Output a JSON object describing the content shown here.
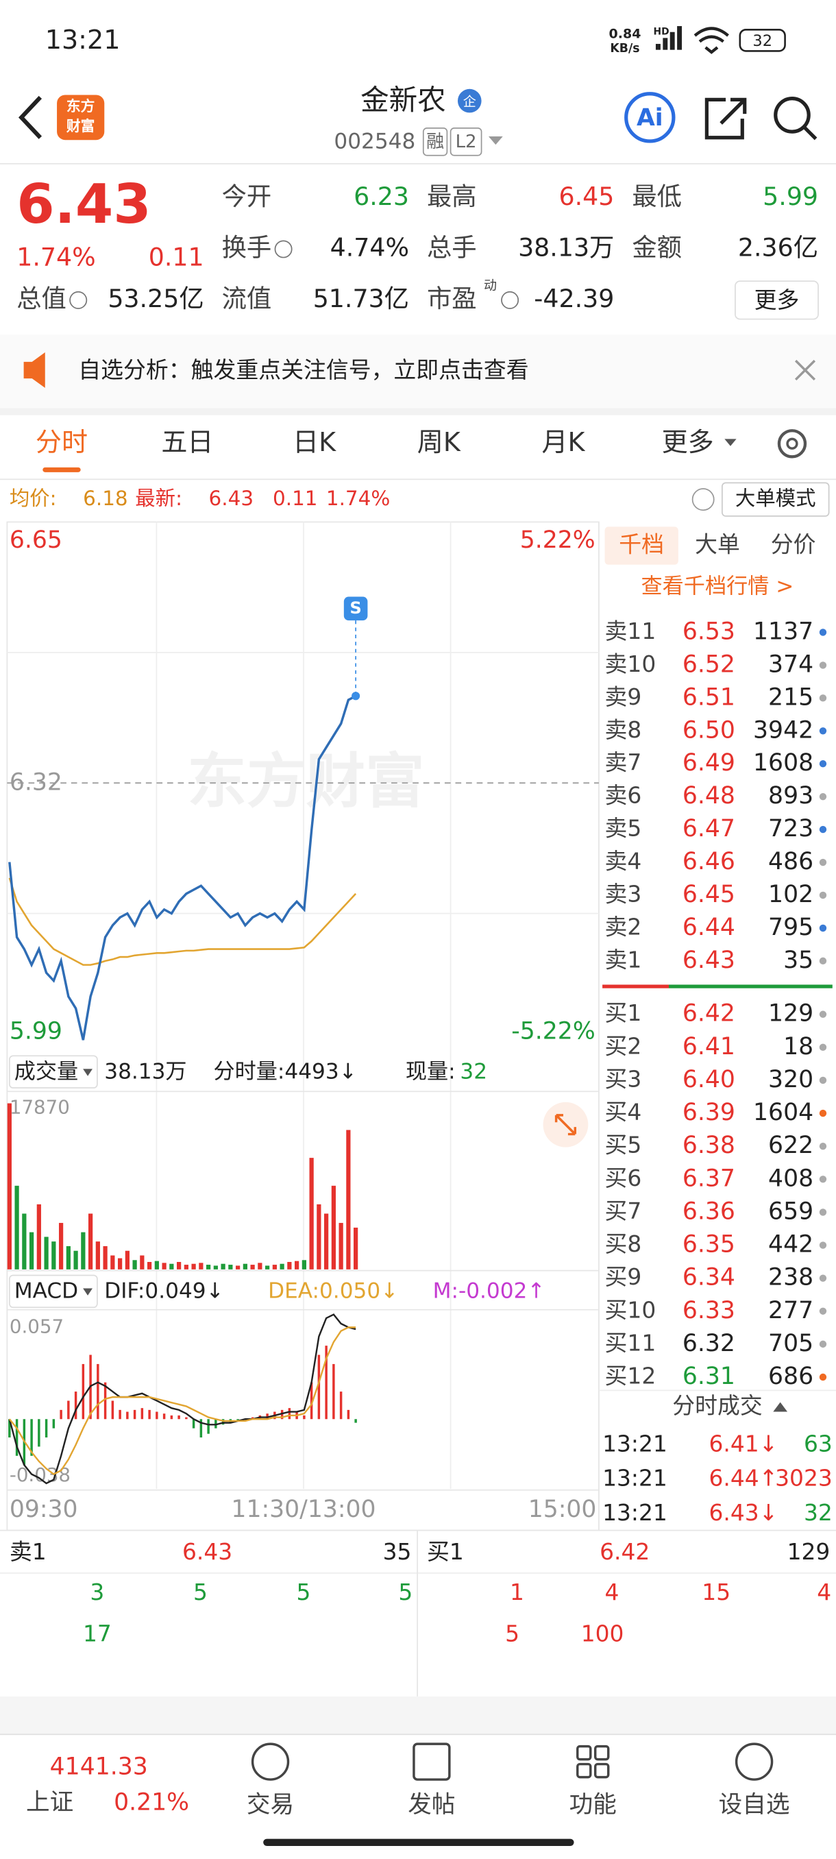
{
  "status": {
    "time": "13:21",
    "net_speed": "0.84",
    "net_unit": "KB/s",
    "net_type": "HD",
    "battery": "32"
  },
  "header": {
    "logo": [
      "东方",
      "财富"
    ],
    "name": "金新农",
    "badge": "企",
    "code": "002548",
    "tags": [
      "融",
      "L2"
    ]
  },
  "quote": {
    "price": "6.43",
    "change_pct": "1.74%",
    "change": "0.11",
    "fields": [
      {
        "label": "今开",
        "value": "6.23"
      },
      {
        "label": "最高",
        "value": "6.45"
      },
      {
        "label": "最低",
        "value": "5.99"
      },
      {
        "label": "换手",
        "value": "4.74%"
      },
      {
        "label": "总手",
        "value": "38.13万"
      },
      {
        "label": "金额",
        "value": "2.36亿"
      },
      {
        "label": "总值",
        "value": "53.25亿"
      },
      {
        "label": "流值",
        "value": "51.73亿"
      },
      {
        "label": "市盈",
        "sup": "动",
        "value": "-42.39"
      }
    ],
    "more": "更多"
  },
  "notice": "自选分析：触发重点关注信号，立即点击查看",
  "tabs": [
    "分时",
    "五日",
    "日K",
    "周K",
    "月K",
    "更多"
  ],
  "info": {
    "avg_label": "均价:",
    "avg": "6.18",
    "last_label": "最新:",
    "last": "6.43",
    "change": "0.11",
    "change_pct": "1.74%",
    "mode": "大单模式"
  },
  "chart": {
    "type": "line",
    "xlim": [
      0,
      240
    ],
    "x_labels": [
      "09:30",
      "11:30/13:00",
      "15:00"
    ],
    "price_axis": {
      "top": 6.65,
      "bottom": 5.99,
      "prev_close": 6.32,
      "pct_top": "5.22%",
      "pct_bottom": "-5.22%"
    },
    "watermark": "东方财富",
    "signal": "S",
    "x": [
      0,
      3,
      6,
      9,
      12,
      15,
      18,
      21,
      24,
      27,
      30,
      33,
      36,
      39,
      42,
      45,
      48,
      51,
      54,
      57,
      60,
      63,
      66,
      69,
      72,
      75,
      78,
      81,
      84,
      87,
      90,
      93,
      96,
      99,
      102,
      105,
      108,
      111,
      114,
      117,
      120,
      123,
      126,
      129,
      132,
      135,
      138,
      141
    ],
    "series": [
      {
        "color": "#2f6db5",
        "values": [
          6.22,
          6.125,
          6.11,
          6.09,
          6.11,
          6.08,
          6.07,
          6.095,
          6.05,
          6.035,
          5.995,
          6.05,
          6.08,
          6.125,
          6.14,
          6.15,
          6.155,
          6.14,
          6.16,
          6.17,
          6.15,
          6.16,
          6.155,
          6.17,
          6.18,
          6.185,
          6.19,
          6.18,
          6.17,
          6.16,
          6.15,
          6.155,
          6.14,
          6.15,
          6.155,
          6.15,
          6.155,
          6.145,
          6.16,
          6.17,
          6.16,
          6.26,
          6.35,
          6.365,
          6.38,
          6.395,
          6.425,
          6.43
        ]
      },
      {
        "color": "#e2a531",
        "values": [
          6.2,
          6.17,
          6.155,
          6.14,
          6.13,
          6.12,
          6.11,
          6.105,
          6.1,
          6.095,
          6.09,
          6.09,
          6.092,
          6.095,
          6.097,
          6.1,
          6.1,
          6.102,
          6.103,
          6.104,
          6.105,
          6.105,
          6.106,
          6.107,
          6.108,
          6.108,
          6.109,
          6.11,
          6.11,
          6.11,
          6.11,
          6.11,
          6.11,
          6.11,
          6.11,
          6.11,
          6.11,
          6.11,
          6.11,
          6.111,
          6.112,
          6.12,
          6.13,
          6.14,
          6.15,
          6.16,
          6.17,
          6.18
        ]
      }
    ],
    "volume": {
      "label": "成交量",
      "total": "38.13万",
      "tick_label": "分时量:4493↓",
      "now_label": "现量:",
      "now": "32",
      "max": 17870,
      "values": [
        17870,
        9000,
        6000,
        4000,
        7000,
        3500,
        3000,
        5000,
        2500,
        2000,
        4000,
        6000,
        3000,
        2500,
        1500,
        1200,
        2000,
        1000,
        1500,
        800,
        900,
        700,
        600,
        800,
        500,
        600,
        700,
        500,
        400,
        600,
        500,
        400,
        600,
        500,
        700,
        400,
        500,
        600,
        800,
        900,
        1000,
        12000,
        7000,
        6000,
        9000,
        5000,
        15000,
        4493
      ]
    },
    "macd": {
      "label": "MACD",
      "dif_label": "DIF:0.049↓",
      "dea_label": "DEA:0.050↓",
      "m_label": "M:-0.002↑",
      "top": 0.057,
      "bottom": -0.038,
      "m": [
        -0.01,
        -0.02,
        -0.025,
        -0.02,
        -0.015,
        -0.01,
        -0.005,
        0.005,
        0.01,
        0.015,
        0.03,
        0.035,
        0.03,
        0.02,
        0.01,
        0.005,
        0.004,
        0.005,
        0.006,
        0.005,
        0.004,
        0.003,
        0.002,
        0.002,
        0.001,
        -0.005,
        -0.01,
        -0.008,
        -0.005,
        -0.003,
        -0.002,
        -0.001,
        0,
        0.001,
        0.002,
        0.003,
        0.004,
        0.005,
        0.006,
        0.004,
        0.002,
        0.02,
        0.035,
        0.04,
        0.03,
        0.015,
        0.005,
        -0.002
      ],
      "dif": [
        0,
        -0.015,
        -0.025,
        -0.03,
        -0.032,
        -0.035,
        -0.033,
        -0.02,
        -0.005,
        0.005,
        0.012,
        0.018,
        0.02,
        0.018,
        0.015,
        0.012,
        0.012,
        0.013,
        0.014,
        0.012,
        0.01,
        0.008,
        0.006,
        0.005,
        0.003,
        0,
        -0.002,
        -0.003,
        -0.003,
        -0.002,
        -0.002,
        -0.001,
        0,
        0,
        0.001,
        0.001,
        0.002,
        0.003,
        0.004,
        0.004,
        0.005,
        0.02,
        0.045,
        0.055,
        0.057,
        0.052,
        0.05,
        0.049
      ],
      "dea": [
        0,
        -0.005,
        -0.012,
        -0.018,
        -0.023,
        -0.027,
        -0.03,
        -0.028,
        -0.022,
        -0.014,
        -0.005,
        0.003,
        0.008,
        0.011,
        0.012,
        0.012,
        0.012,
        0.012,
        0.012,
        0.012,
        0.011,
        0.01,
        0.009,
        0.008,
        0.007,
        0.005,
        0.003,
        0.001,
        0,
        -0.001,
        -0.001,
        -0.001,
        -0.001,
        0,
        0,
        0,
        0.001,
        0.001,
        0.002,
        0.002,
        0.003,
        0.008,
        0.02,
        0.033,
        0.042,
        0.048,
        0.05,
        0.05
      ]
    }
  },
  "order_book": {
    "tabs": [
      "千档",
      "大单",
      "分价"
    ],
    "link": "查看千档行情 >",
    "asks": [
      {
        "label": "卖11",
        "price": "6.53",
        "volume": "1137",
        "dot": "#3a7bd5"
      },
      {
        "label": "卖10",
        "price": "6.52",
        "volume": "374",
        "dot": "#aaaaaa"
      },
      {
        "label": "卖9",
        "price": "6.51",
        "volume": "215",
        "dot": "#aaaaaa"
      },
      {
        "label": "卖8",
        "price": "6.50",
        "volume": "3942",
        "dot": "#3a7bd5"
      },
      {
        "label": "卖7",
        "price": "6.49",
        "volume": "1608",
        "dot": "#3a7bd5"
      },
      {
        "label": "卖6",
        "price": "6.48",
        "volume": "893",
        "dot": "#aaaaaa"
      },
      {
        "label": "卖5",
        "price": "6.47",
        "volume": "723",
        "dot": "#3a7bd5"
      },
      {
        "label": "卖4",
        "price": "6.46",
        "volume": "486",
        "dot": "#aaaaaa"
      },
      {
        "label": "卖3",
        "price": "6.45",
        "volume": "102",
        "dot": "#aaaaaa"
      },
      {
        "label": "卖2",
        "price": "6.44",
        "volume": "795",
        "dot": "#3a7bd5"
      },
      {
        "label": "卖1",
        "price": "6.43",
        "volume": "35",
        "dot": "#aaaaaa"
      }
    ],
    "bids": [
      {
        "label": "买1",
        "price": "6.42",
        "volume": "129",
        "dot": "#aaaaaa"
      },
      {
        "label": "买2",
        "price": "6.41",
        "volume": "18",
        "dot": "#aaaaaa"
      },
      {
        "label": "买3",
        "price": "6.40",
        "volume": "320",
        "dot": "#aaaaaa"
      },
      {
        "label": "买4",
        "price": "6.39",
        "volume": "1604",
        "dot": "#f06a22"
      },
      {
        "label": "买5",
        "price": "6.38",
        "volume": "622",
        "dot": "#aaaaaa"
      },
      {
        "label": "买6",
        "price": "6.37",
        "volume": "408",
        "dot": "#aaaaaa"
      },
      {
        "label": "买7",
        "price": "6.36",
        "volume": "659",
        "dot": "#aaaaaa"
      },
      {
        "label": "买8",
        "price": "6.35",
        "volume": "442",
        "dot": "#aaaaaa"
      },
      {
        "label": "买9",
        "price": "6.34",
        "volume": "238",
        "dot": "#aaaaaa"
      },
      {
        "label": "买10",
        "price": "6.33",
        "volume": "277",
        "dot": "#aaaaaa"
      },
      {
        "label": "买11",
        "price": "6.32",
        "volume": "705",
        "dot": "#aaaaaa"
      },
      {
        "label": "买12",
        "price": "6.31",
        "volume": "686",
        "dot": "#f06a22"
      }
    ],
    "trades_title": "分时成交",
    "trades": [
      {
        "time": "13:21",
        "price": "6.41↓",
        "volume": "63"
      },
      {
        "time": "13:21",
        "price": "6.44↑",
        "volume": "3023"
      },
      {
        "time": "13:21",
        "price": "6.43↓",
        "volume": "32"
      }
    ]
  },
  "bottom": {
    "ask": {
      "label": "卖1",
      "price": "6.43",
      "volume": "35"
    },
    "bid": {
      "label": "买1",
      "price": "6.42",
      "volume": "129"
    },
    "ask_queue": [
      "3",
      "5",
      "5",
      "5",
      "17"
    ],
    "bid_queue": [
      "1",
      "4",
      "15",
      "4",
      "5",
      "100"
    ]
  },
  "nav": {
    "index_value": "4141.33",
    "index_name": "上证",
    "index_pct": "0.21%",
    "items": [
      "交易",
      "发帖",
      "功能",
      "设自选"
    ]
  }
}
